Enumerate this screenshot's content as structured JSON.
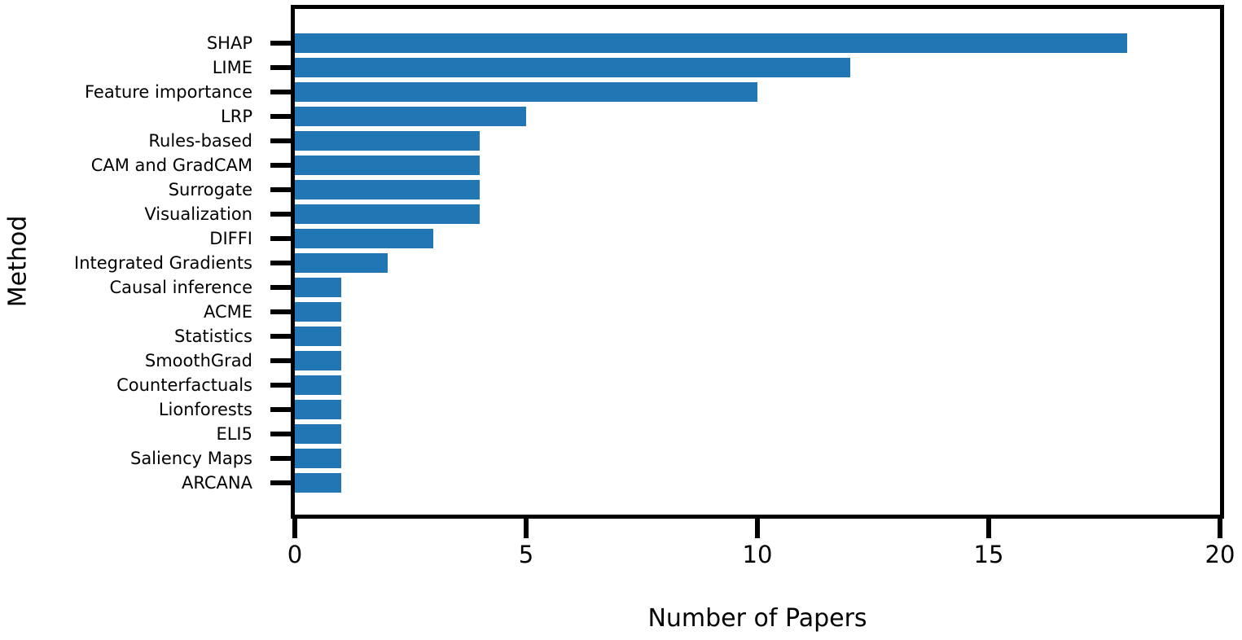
{
  "figure": {
    "background_color": "#ffffff"
  },
  "chart_data": {
    "type": "bar",
    "orientation": "horizontal",
    "title": "",
    "xlabel": "Number of Papers",
    "ylabel": "Method",
    "categories": [
      "SHAP",
      "LIME",
      "Feature importance",
      "LRP",
      "Rules-based",
      "CAM and GradCAM",
      "Surrogate",
      "Visualization",
      "DIFFI",
      "Integrated Gradients",
      "Causal inference",
      "ACME",
      "Statistics",
      "SmoothGrad",
      "Counterfactuals",
      "Lionforests",
      "ELI5",
      "Saliency Maps",
      "ARCANA"
    ],
    "values": [
      18,
      12,
      10,
      5,
      4,
      4,
      4,
      4,
      3,
      2,
      1,
      1,
      1,
      1,
      1,
      1,
      1,
      1,
      1
    ],
    "xlim": [
      0,
      20
    ],
    "xticks": [
      0,
      5,
      10,
      15,
      20
    ],
    "grid": false,
    "legend": null,
    "bar_color": "#2077b4",
    "axis_color": "#000000"
  }
}
